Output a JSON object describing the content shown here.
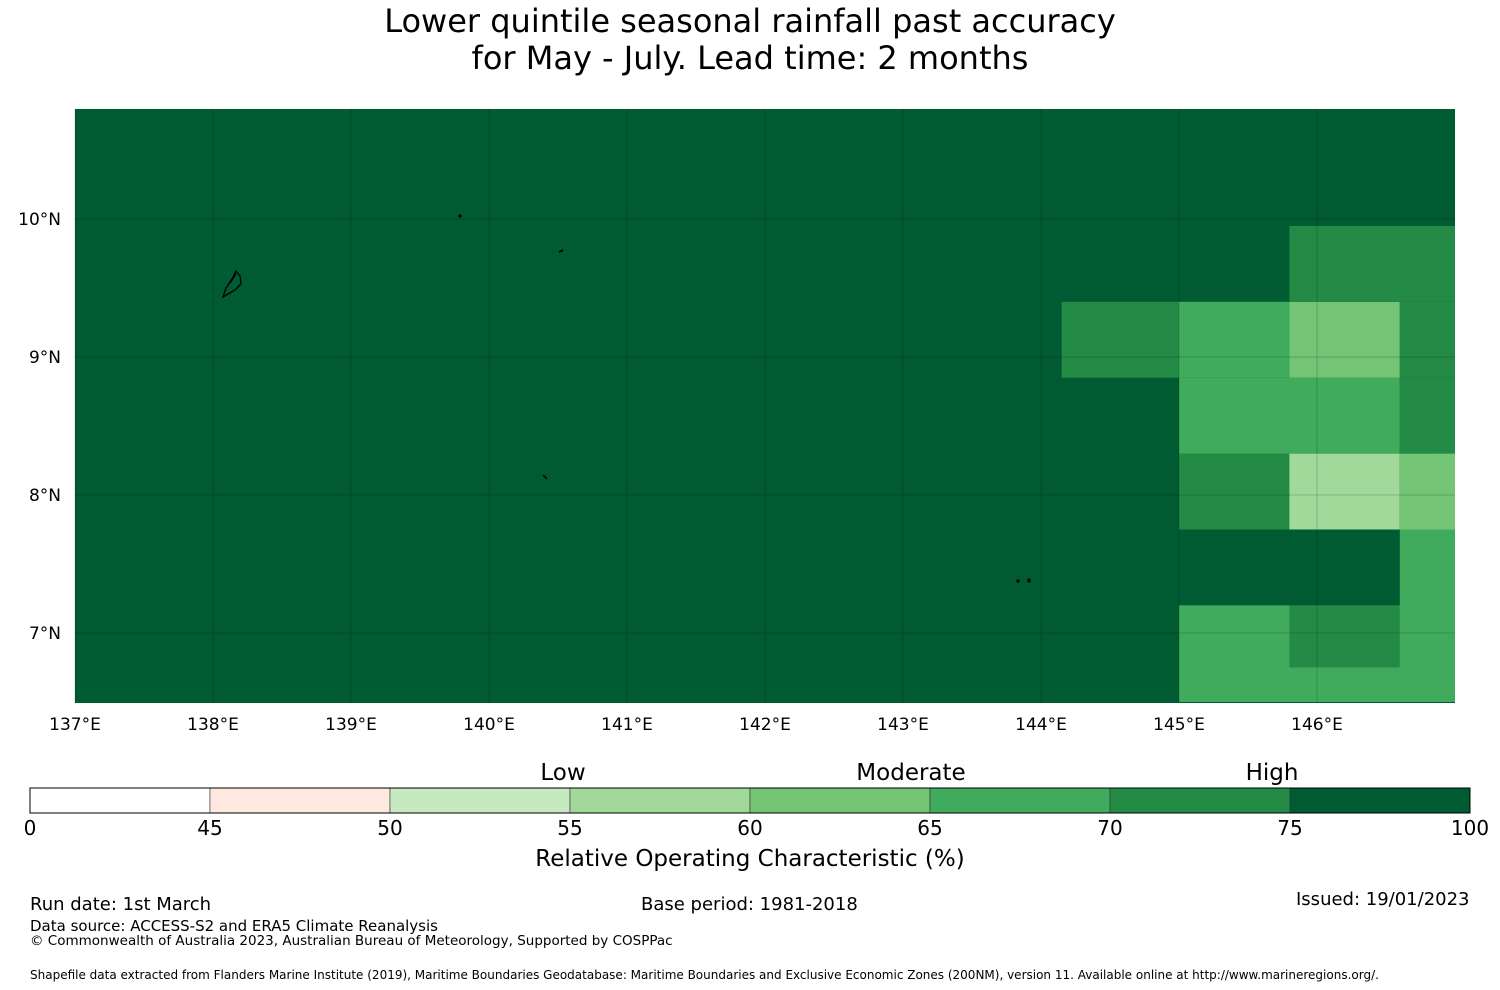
{
  "title": {
    "line1": "Lower quintile seasonal rainfall past accuracy",
    "line2": "for May - July. Lead time: 2 months"
  },
  "map": {
    "lon_range": [
      137,
      147
    ],
    "lat_range": [
      6.5,
      10.8
    ],
    "lon_labels": [
      "137°E",
      "138°E",
      "139°E",
      "140°E",
      "141°E",
      "142°E",
      "143°E",
      "144°E",
      "145°E",
      "146°E"
    ],
    "lat_labels": [
      "10°N",
      "9°N",
      "8°N",
      "7°N"
    ],
    "lon_ticks": [
      137,
      138,
      139,
      140,
      141,
      142,
      143,
      144,
      145,
      146
    ],
    "lat_ticks": [
      10,
      9,
      8,
      7
    ],
    "background_color": "#005a32",
    "grid_cells": [
      {
        "lon": [
          146.8,
          147.0
        ],
        "lat": [
          6.5,
          8.3
        ],
        "roc_class": "65-70"
      },
      {
        "lon": [
          145.0,
          147.0
        ],
        "lat": [
          6.5,
          7.2
        ],
        "roc_class": "65-70"
      },
      {
        "lon": [
          145.0,
          145.8
        ],
        "lat": [
          6.5,
          7.2
        ],
        "roc_class": "65-70"
      },
      {
        "lon": [
          145.8,
          146.6
        ],
        "lat": [
          6.75,
          7.2
        ],
        "roc_class": "70-75"
      },
      {
        "lon": [
          146.6,
          147.0
        ],
        "lat": [
          6.5,
          7.75
        ],
        "roc_class": "65-70"
      },
      {
        "lon": [
          145.0,
          145.8
        ],
        "lat": [
          7.75,
          8.3
        ],
        "roc_class": "70-75"
      },
      {
        "lon": [
          145.8,
          146.6
        ],
        "lat": [
          7.75,
          8.3
        ],
        "roc_class": "55-60"
      },
      {
        "lon": [
          146.6,
          147.0
        ],
        "lat": [
          7.75,
          8.3
        ],
        "roc_class": "60-65"
      },
      {
        "lon": [
          145.0,
          146.6
        ],
        "lat": [
          8.3,
          8.85
        ],
        "roc_class": "65-70"
      },
      {
        "lon": [
          146.6,
          147.0
        ],
        "lat": [
          8.3,
          8.85
        ],
        "roc_class": "70-75"
      },
      {
        "lon": [
          144.15,
          145.0
        ],
        "lat": [
          8.85,
          9.4
        ],
        "roc_class": "70-75"
      },
      {
        "lon": [
          145.0,
          145.8
        ],
        "lat": [
          8.85,
          9.4
        ],
        "roc_class": "65-70"
      },
      {
        "lon": [
          145.8,
          146.6
        ],
        "lat": [
          8.85,
          9.4
        ],
        "roc_class": "60-65"
      },
      {
        "lon": [
          146.6,
          147.0
        ],
        "lat": [
          8.85,
          9.4
        ],
        "roc_class": "70-75"
      },
      {
        "lon": [
          145.8,
          147.0
        ],
        "lat": [
          9.4,
          9.95
        ],
        "roc_class": "70-75"
      }
    ]
  },
  "colorbar": {
    "ticks": [
      "0",
      "45",
      "50",
      "55",
      "60",
      "65",
      "70",
      "75",
      "100"
    ],
    "colors": [
      "#ffffff",
      "#fee8e0",
      "#c7e9c0",
      "#a1d99b",
      "#74c476",
      "#41ab5d",
      "#238b45",
      "#005a32"
    ],
    "class_colors": {
      "55-60": "#a1d99b",
      "60-65": "#74c476",
      "65-70": "#41ab5d",
      "70-75": "#238b45"
    },
    "categories": [
      "Low",
      "Moderate",
      "High"
    ],
    "label": "Relative Operating Characteristic (%)"
  },
  "footer": {
    "run_date": "Run date: 1st March",
    "base_period": "Base period: 1981-2018",
    "issued": "Issued: 19/01/2023",
    "data_source": "Data source: ACCESS-S2 and ERA5 Climate Reanalysis",
    "copyright": "© Commonwealth of Australia 2023, Australian Bureau of Meteorology, Supported by COSPPac",
    "shapefile": "Shapefile data extracted from Flanders Marine Institute (2019), Maritime Boundaries Geodatabase: Maritime Boundaries and Exclusive Economic Zones (200NM), version 11. Available online at http://www.marineregions.org/."
  }
}
